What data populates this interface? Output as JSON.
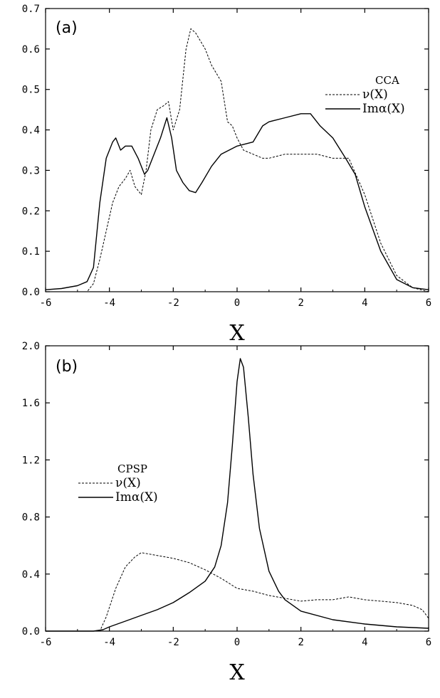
{
  "chart_data": [
    {
      "type": "line",
      "panel_label": "(a)",
      "xlabel": "X",
      "ylabel": "",
      "xlim": [
        -6,
        6
      ],
      "ylim": [
        0,
        0.7
      ],
      "x_ticks": [
        "-6",
        "-4",
        "-2",
        "0",
        "2",
        "4",
        "6"
      ],
      "y_ticks": [
        "0.0",
        "0.1",
        "0.2",
        "0.3",
        "0.4",
        "0.5",
        "0.6",
        "0.7"
      ],
      "legend_title": "CCA",
      "legend_position": "top-right",
      "series": [
        {
          "name": "ν(X)",
          "style": "dashed",
          "x": [
            -6,
            -4.7,
            -4.5,
            -4.3,
            -4.1,
            -3.9,
            -3.7,
            -3.5,
            -3.35,
            -3.2,
            -3.0,
            -2.85,
            -2.7,
            -2.5,
            -2.3,
            -2.15,
            -2.0,
            -1.8,
            -1.6,
            -1.45,
            -1.3,
            -1.0,
            -0.8,
            -0.5,
            -0.3,
            -0.15,
            0.0,
            0.2,
            0.5,
            0.8,
            1.0,
            1.5,
            2.0,
            2.5,
            3.0,
            3.5,
            4.0,
            4.5,
            5.0,
            5.5,
            6.0
          ],
          "y": [
            0.0,
            0.0,
            0.02,
            0.08,
            0.15,
            0.22,
            0.26,
            0.28,
            0.3,
            0.26,
            0.24,
            0.3,
            0.4,
            0.45,
            0.46,
            0.47,
            0.4,
            0.45,
            0.6,
            0.65,
            0.64,
            0.6,
            0.56,
            0.52,
            0.42,
            0.41,
            0.38,
            0.35,
            0.34,
            0.33,
            0.33,
            0.34,
            0.34,
            0.34,
            0.33,
            0.33,
            0.24,
            0.12,
            0.04,
            0.01,
            0.0
          ]
        },
        {
          "name": "Imα(X)",
          "style": "solid",
          "x": [
            -6,
            -5.5,
            -5.0,
            -4.7,
            -4.5,
            -4.3,
            -4.1,
            -3.9,
            -3.8,
            -3.65,
            -3.5,
            -3.3,
            -3.1,
            -2.9,
            -2.8,
            -2.6,
            -2.4,
            -2.2,
            -2.05,
            -1.9,
            -1.7,
            -1.5,
            -1.3,
            -1.1,
            -0.8,
            -0.5,
            0.0,
            0.5,
            0.8,
            1.0,
            1.5,
            2.0,
            2.3,
            2.6,
            3.0,
            3.4,
            3.7,
            4.0,
            4.5,
            5.0,
            5.5,
            6.0
          ],
          "y": [
            0.005,
            0.008,
            0.015,
            0.025,
            0.06,
            0.22,
            0.33,
            0.37,
            0.38,
            0.35,
            0.36,
            0.36,
            0.33,
            0.29,
            0.3,
            0.34,
            0.38,
            0.43,
            0.38,
            0.3,
            0.27,
            0.25,
            0.245,
            0.27,
            0.31,
            0.34,
            0.36,
            0.37,
            0.41,
            0.42,
            0.43,
            0.44,
            0.44,
            0.41,
            0.38,
            0.33,
            0.29,
            0.21,
            0.1,
            0.03,
            0.01,
            0.005
          ]
        }
      ]
    },
    {
      "type": "line",
      "panel_label": "(b)",
      "xlabel": "X",
      "ylabel": "",
      "xlim": [
        -6,
        6
      ],
      "ylim": [
        0,
        2.0
      ],
      "x_ticks": [
        "-6",
        "-4",
        "-2",
        "0",
        "2",
        "4",
        "6"
      ],
      "y_ticks": [
        "0.0",
        "0.4",
        "0.8",
        "1.2",
        "1.6",
        "2.0"
      ],
      "legend_title": "CPSP",
      "legend_position": "middle-left",
      "series": [
        {
          "name": "ν(X)",
          "style": "dashed",
          "x": [
            -6,
            -4.3,
            -4.1,
            -3.8,
            -3.5,
            -3.2,
            -3.0,
            -2.5,
            -2.0,
            -1.5,
            -1.0,
            -0.5,
            0.0,
            0.5,
            1.0,
            1.5,
            2.0,
            2.5,
            3.0,
            3.5,
            4.0,
            4.5,
            5.0,
            5.5,
            5.8,
            6.0
          ],
          "y": [
            0.0,
            0.0,
            0.1,
            0.3,
            0.45,
            0.52,
            0.55,
            0.53,
            0.51,
            0.48,
            0.43,
            0.37,
            0.3,
            0.28,
            0.25,
            0.23,
            0.21,
            0.22,
            0.22,
            0.24,
            0.22,
            0.21,
            0.2,
            0.18,
            0.15,
            0.09
          ]
        },
        {
          "name": "Imα(X)",
          "style": "solid",
          "x": [
            -6,
            -4.5,
            -4.2,
            -4.0,
            -3.5,
            -3.0,
            -2.5,
            -2.0,
            -1.5,
            -1.0,
            -0.7,
            -0.5,
            -0.3,
            -0.15,
            0.0,
            0.1,
            0.2,
            0.35,
            0.5,
            0.7,
            1.0,
            1.3,
            1.5,
            2.0,
            3.0,
            4.0,
            5.0,
            6.0
          ],
          "y": [
            0.0,
            0.0,
            0.01,
            0.03,
            0.07,
            0.11,
            0.15,
            0.2,
            0.27,
            0.35,
            0.45,
            0.6,
            0.9,
            1.3,
            1.75,
            1.91,
            1.85,
            1.5,
            1.1,
            0.72,
            0.42,
            0.28,
            0.22,
            0.14,
            0.08,
            0.05,
            0.03,
            0.02
          ]
        }
      ]
    }
  ]
}
